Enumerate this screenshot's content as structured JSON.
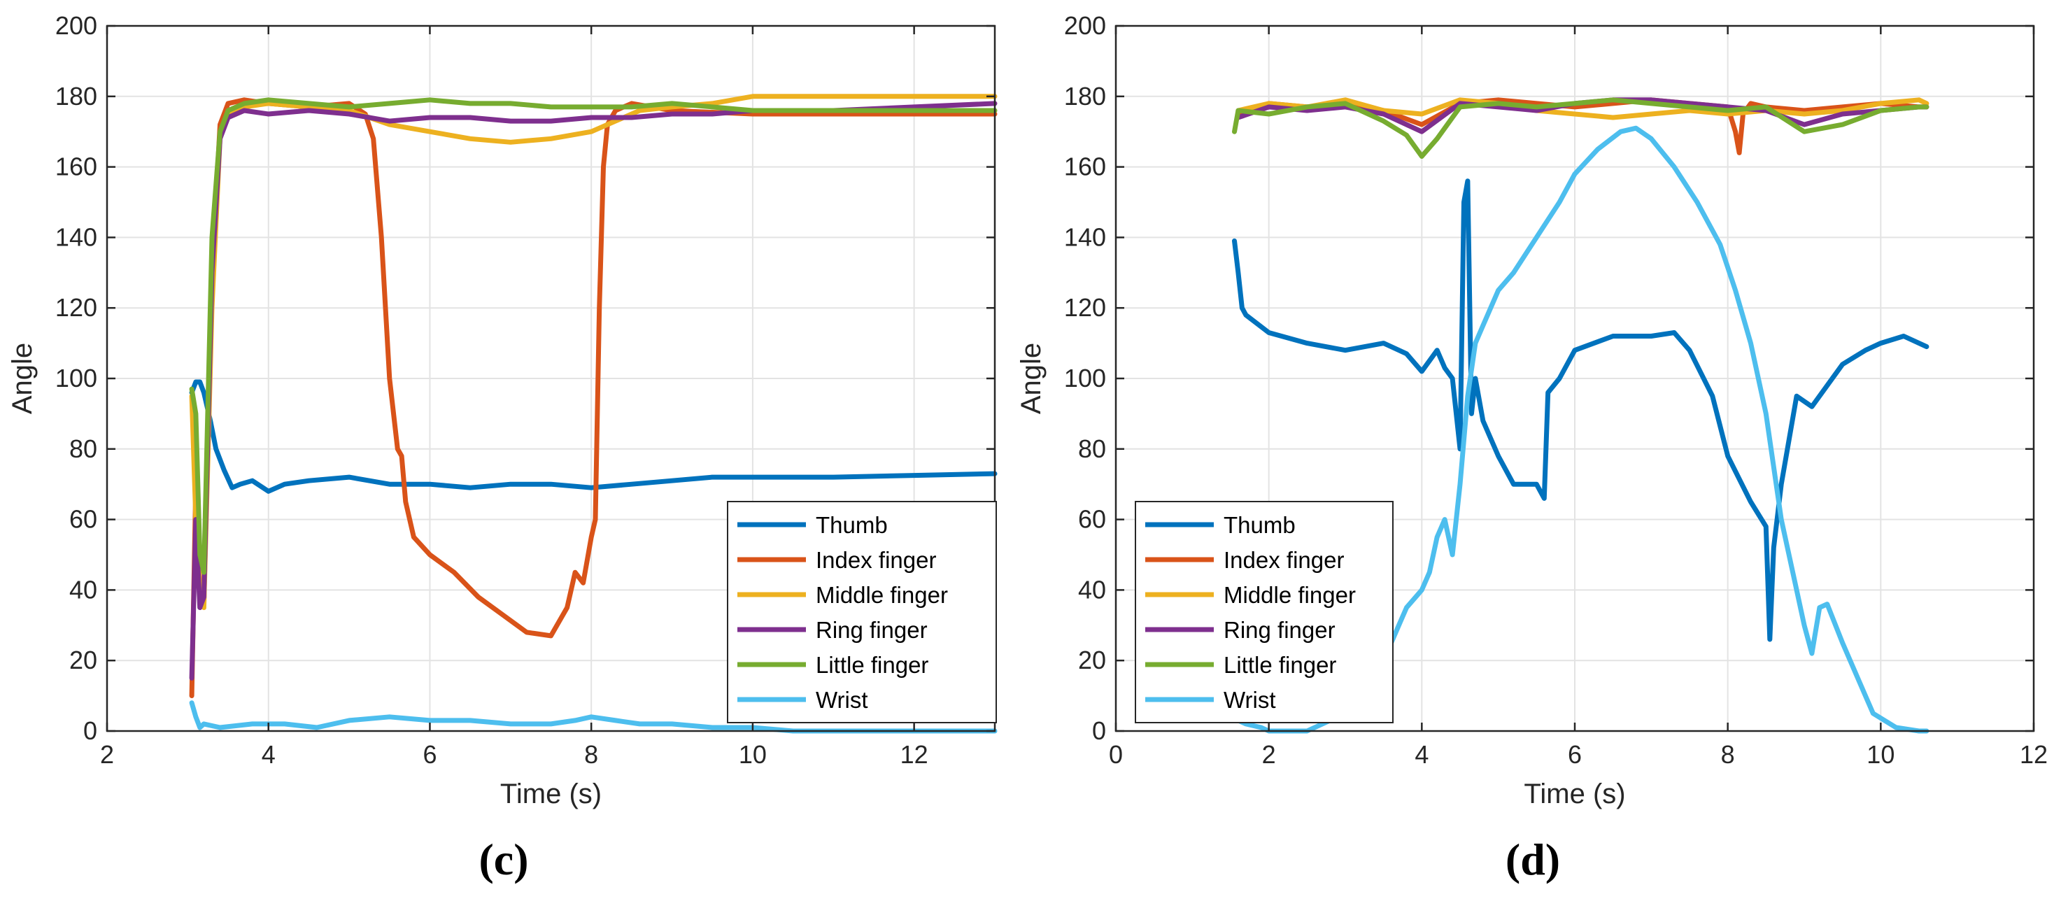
{
  "chart_data": [
    {
      "type": "line",
      "panel_label": "(c)",
      "xlabel": "Time (s)",
      "ylabel": "Angle",
      "xlim": [
        2,
        13
      ],
      "ylim": [
        0,
        200
      ],
      "xticks": [
        2,
        4,
        6,
        8,
        10,
        12
      ],
      "yticks": [
        0,
        20,
        40,
        60,
        80,
        100,
        120,
        140,
        160,
        180,
        200
      ],
      "grid": true,
      "legend_position": "bottom-right",
      "series": [
        {
          "name": "Thumb",
          "color": "#0072BD",
          "x": [
            3.05,
            3.1,
            3.15,
            3.2,
            3.28,
            3.35,
            3.45,
            3.55,
            3.65,
            3.8,
            4.0,
            4.2,
            4.5,
            5.0,
            5.5,
            6.0,
            6.5,
            7.0,
            7.5,
            8.0,
            8.5,
            9.0,
            9.5,
            10.0,
            10.5,
            11.0,
            12.0,
            13.0
          ],
          "y": [
            96,
            99,
            99,
            96,
            88,
            80,
            74,
            69,
            70,
            71,
            68,
            70,
            71,
            72,
            70,
            70,
            69,
            70,
            70,
            69,
            70,
            71,
            72,
            72,
            72,
            72,
            72.5,
            73
          ]
        },
        {
          "name": "Index finger",
          "color": "#D95319",
          "x": [
            3.05,
            3.1,
            3.15,
            3.2,
            3.3,
            3.4,
            3.5,
            3.7,
            4.0,
            4.5,
            5.0,
            5.2,
            5.3,
            5.4,
            5.5,
            5.6,
            5.65,
            5.7,
            5.8,
            6.0,
            6.3,
            6.6,
            6.9,
            7.2,
            7.5,
            7.7,
            7.8,
            7.9,
            8.0,
            8.05,
            8.1,
            8.15,
            8.2,
            8.3,
            8.5,
            9.0,
            10.0,
            11.0,
            12.0,
            13.0
          ],
          "y": [
            10,
            70,
            40,
            36,
            130,
            172,
            178,
            179,
            178,
            177,
            178,
            175,
            168,
            140,
            100,
            80,
            78,
            65,
            55,
            50,
            45,
            38,
            33,
            28,
            27,
            35,
            45,
            42,
            55,
            60,
            120,
            160,
            172,
            176,
            178,
            176,
            175,
            175,
            175,
            175
          ]
        },
        {
          "name": "Middle finger",
          "color": "#EDB120",
          "x": [
            3.05,
            3.1,
            3.15,
            3.2,
            3.3,
            3.4,
            3.5,
            3.7,
            4.0,
            4.5,
            5.0,
            5.5,
            6.0,
            6.5,
            7.0,
            7.5,
            8.0,
            8.3,
            8.6,
            9.0,
            9.5,
            10.0,
            10.5,
            11.0,
            12.0,
            13.0
          ],
          "y": [
            95,
            60,
            40,
            35,
            120,
            168,
            175,
            177,
            178,
            177,
            176,
            172,
            170,
            168,
            167,
            168,
            170,
            173,
            176,
            177,
            178,
            180,
            180,
            180,
            180,
            180
          ]
        },
        {
          "name": "Ring finger",
          "color": "#7E2F8E",
          "x": [
            3.05,
            3.1,
            3.15,
            3.2,
            3.3,
            3.4,
            3.5,
            3.7,
            4.0,
            4.5,
            5.0,
            5.5,
            6.0,
            6.5,
            7.0,
            7.5,
            8.0,
            8.5,
            9.0,
            9.5,
            10.0,
            11.0,
            12.0,
            13.0
          ],
          "y": [
            15,
            60,
            35,
            38,
            130,
            168,
            174,
            176,
            175,
            176,
            175,
            173,
            174,
            174,
            173,
            173,
            174,
            174,
            175,
            175,
            176,
            176,
            177,
            178
          ]
        },
        {
          "name": "Little finger",
          "color": "#77AC30",
          "x": [
            3.05,
            3.1,
            3.15,
            3.2,
            3.3,
            3.4,
            3.5,
            3.7,
            4.0,
            4.5,
            5.0,
            5.5,
            6.0,
            6.5,
            7.0,
            7.5,
            8.0,
            8.5,
            9.0,
            9.5,
            10.0,
            11.0,
            12.0,
            13.0
          ],
          "y": [
            97,
            90,
            50,
            45,
            140,
            170,
            176,
            178,
            179,
            178,
            177,
            178,
            179,
            178,
            178,
            177,
            177,
            177,
            178,
            177,
            176,
            176,
            176,
            176
          ]
        },
        {
          "name": "Wrist",
          "color": "#4DBEEE",
          "x": [
            3.05,
            3.1,
            3.15,
            3.2,
            3.4,
            3.8,
            4.2,
            4.6,
            5.0,
            5.5,
            6.0,
            6.5,
            7.0,
            7.5,
            7.8,
            8.0,
            8.3,
            8.6,
            9.0,
            9.5,
            10.0,
            10.5,
            11.0,
            12.0,
            13.0
          ],
          "y": [
            8,
            4,
            1,
            2,
            1,
            2,
            2,
            1,
            3,
            4,
            3,
            3,
            2,
            2,
            3,
            4,
            3,
            2,
            2,
            1,
            1,
            0,
            0,
            0,
            0
          ]
        }
      ]
    },
    {
      "type": "line",
      "panel_label": "(d)",
      "xlabel": "Time (s)",
      "ylabel": "Angle",
      "xlim": [
        0,
        12
      ],
      "ylim": [
        0,
        200
      ],
      "xticks": [
        0,
        2,
        4,
        6,
        8,
        10,
        12
      ],
      "yticks": [
        0,
        20,
        40,
        60,
        80,
        100,
        120,
        140,
        160,
        180,
        200
      ],
      "grid": true,
      "legend_position": "bottom-left",
      "series": [
        {
          "name": "Thumb",
          "color": "#0072BD",
          "x": [
            1.55,
            1.6,
            1.65,
            1.7,
            2.0,
            2.5,
            3.0,
            3.5,
            3.8,
            4.0,
            4.2,
            4.3,
            4.4,
            4.5,
            4.55,
            4.6,
            4.65,
            4.7,
            4.8,
            5.0,
            5.2,
            5.5,
            5.6,
            5.65,
            5.8,
            6.0,
            6.5,
            7.0,
            7.3,
            7.5,
            7.8,
            8.0,
            8.3,
            8.5,
            8.55,
            8.6,
            8.7,
            8.9,
            9.1,
            9.3,
            9.5,
            9.8,
            10.0,
            10.3,
            10.5,
            10.6
          ],
          "y": [
            139,
            130,
            120,
            118,
            113,
            110,
            108,
            110,
            107,
            102,
            108,
            103,
            100,
            80,
            150,
            156,
            90,
            100,
            88,
            78,
            70,
            70,
            66,
            96,
            100,
            108,
            112,
            112,
            113,
            108,
            95,
            78,
            65,
            58,
            26,
            52,
            70,
            95,
            92,
            98,
            104,
            108,
            110,
            112,
            110,
            109
          ]
        },
        {
          "name": "Index finger",
          "color": "#D95319",
          "x": [
            1.6,
            2.0,
            2.5,
            3.0,
            3.5,
            4.0,
            4.5,
            5.0,
            5.5,
            6.0,
            6.5,
            7.0,
            7.5,
            8.0,
            8.1,
            8.15,
            8.2,
            8.3,
            8.5,
            9.0,
            9.5,
            10.0,
            10.5,
            10.6
          ],
          "y": [
            175,
            178,
            177,
            178,
            176,
            172,
            178,
            179,
            178,
            177,
            178,
            179,
            178,
            177,
            170,
            164,
            175,
            178,
            177,
            176,
            177,
            178,
            177,
            177
          ]
        },
        {
          "name": "Middle finger",
          "color": "#EDB120",
          "x": [
            1.6,
            2.0,
            2.5,
            3.0,
            3.5,
            4.0,
            4.5,
            5.0,
            5.5,
            6.0,
            6.5,
            7.0,
            7.5,
            8.0,
            8.5,
            9.0,
            9.5,
            10.0,
            10.5,
            10.6
          ],
          "y": [
            176,
            178,
            177,
            179,
            176,
            175,
            179,
            178,
            176,
            175,
            174,
            175,
            176,
            175,
            176,
            175,
            176,
            178,
            179,
            178
          ]
        },
        {
          "name": "Ring finger",
          "color": "#7E2F8E",
          "x": [
            1.6,
            2.0,
            2.5,
            3.0,
            3.5,
            4.0,
            4.5,
            5.0,
            5.5,
            6.0,
            6.5,
            7.0,
            7.5,
            8.0,
            8.5,
            9.0,
            9.5,
            10.0,
            10.5,
            10.6
          ],
          "y": [
            174,
            177,
            176,
            177,
            175,
            170,
            178,
            177,
            176,
            178,
            179,
            179,
            178,
            177,
            176,
            172,
            175,
            176,
            177,
            177
          ]
        },
        {
          "name": "Little finger",
          "color": "#77AC30",
          "x": [
            1.55,
            1.6,
            2.0,
            2.5,
            3.0,
            3.5,
            3.8,
            4.0,
            4.2,
            4.5,
            5.0,
            5.5,
            6.0,
            6.5,
            7.0,
            7.5,
            8.0,
            8.5,
            9.0,
            9.5,
            10.0,
            10.5,
            10.6
          ],
          "y": [
            170,
            176,
            175,
            177,
            178,
            173,
            169,
            163,
            168,
            177,
            178,
            177,
            178,
            179,
            178,
            177,
            176,
            177,
            170,
            172,
            176,
            177,
            177
          ]
        },
        {
          "name": "Wrist",
          "color": "#4DBEEE",
          "x": [
            1.55,
            1.6,
            1.7,
            1.9,
            2.0,
            2.5,
            3.0,
            3.2,
            3.5,
            3.7,
            3.8,
            4.0,
            4.1,
            4.2,
            4.3,
            4.4,
            4.5,
            4.6,
            4.7,
            4.8,
            5.0,
            5.2,
            5.5,
            5.8,
            6.0,
            6.3,
            6.6,
            6.8,
            7.0,
            7.3,
            7.6,
            7.9,
            8.1,
            8.3,
            8.5,
            8.7,
            8.9,
            9.0,
            9.1,
            9.2,
            9.3,
            9.5,
            9.7,
            9.9,
            10.2,
            10.5,
            10.6
          ],
          "y": [
            4,
            3,
            2,
            1,
            0,
            0,
            5,
            8,
            20,
            30,
            35,
            40,
            45,
            55,
            60,
            50,
            70,
            95,
            110,
            115,
            125,
            130,
            140,
            150,
            158,
            165,
            170,
            171,
            168,
            160,
            150,
            138,
            125,
            110,
            90,
            60,
            40,
            30,
            22,
            35,
            36,
            25,
            15,
            5,
            1,
            0,
            0
          ]
        }
      ]
    }
  ]
}
